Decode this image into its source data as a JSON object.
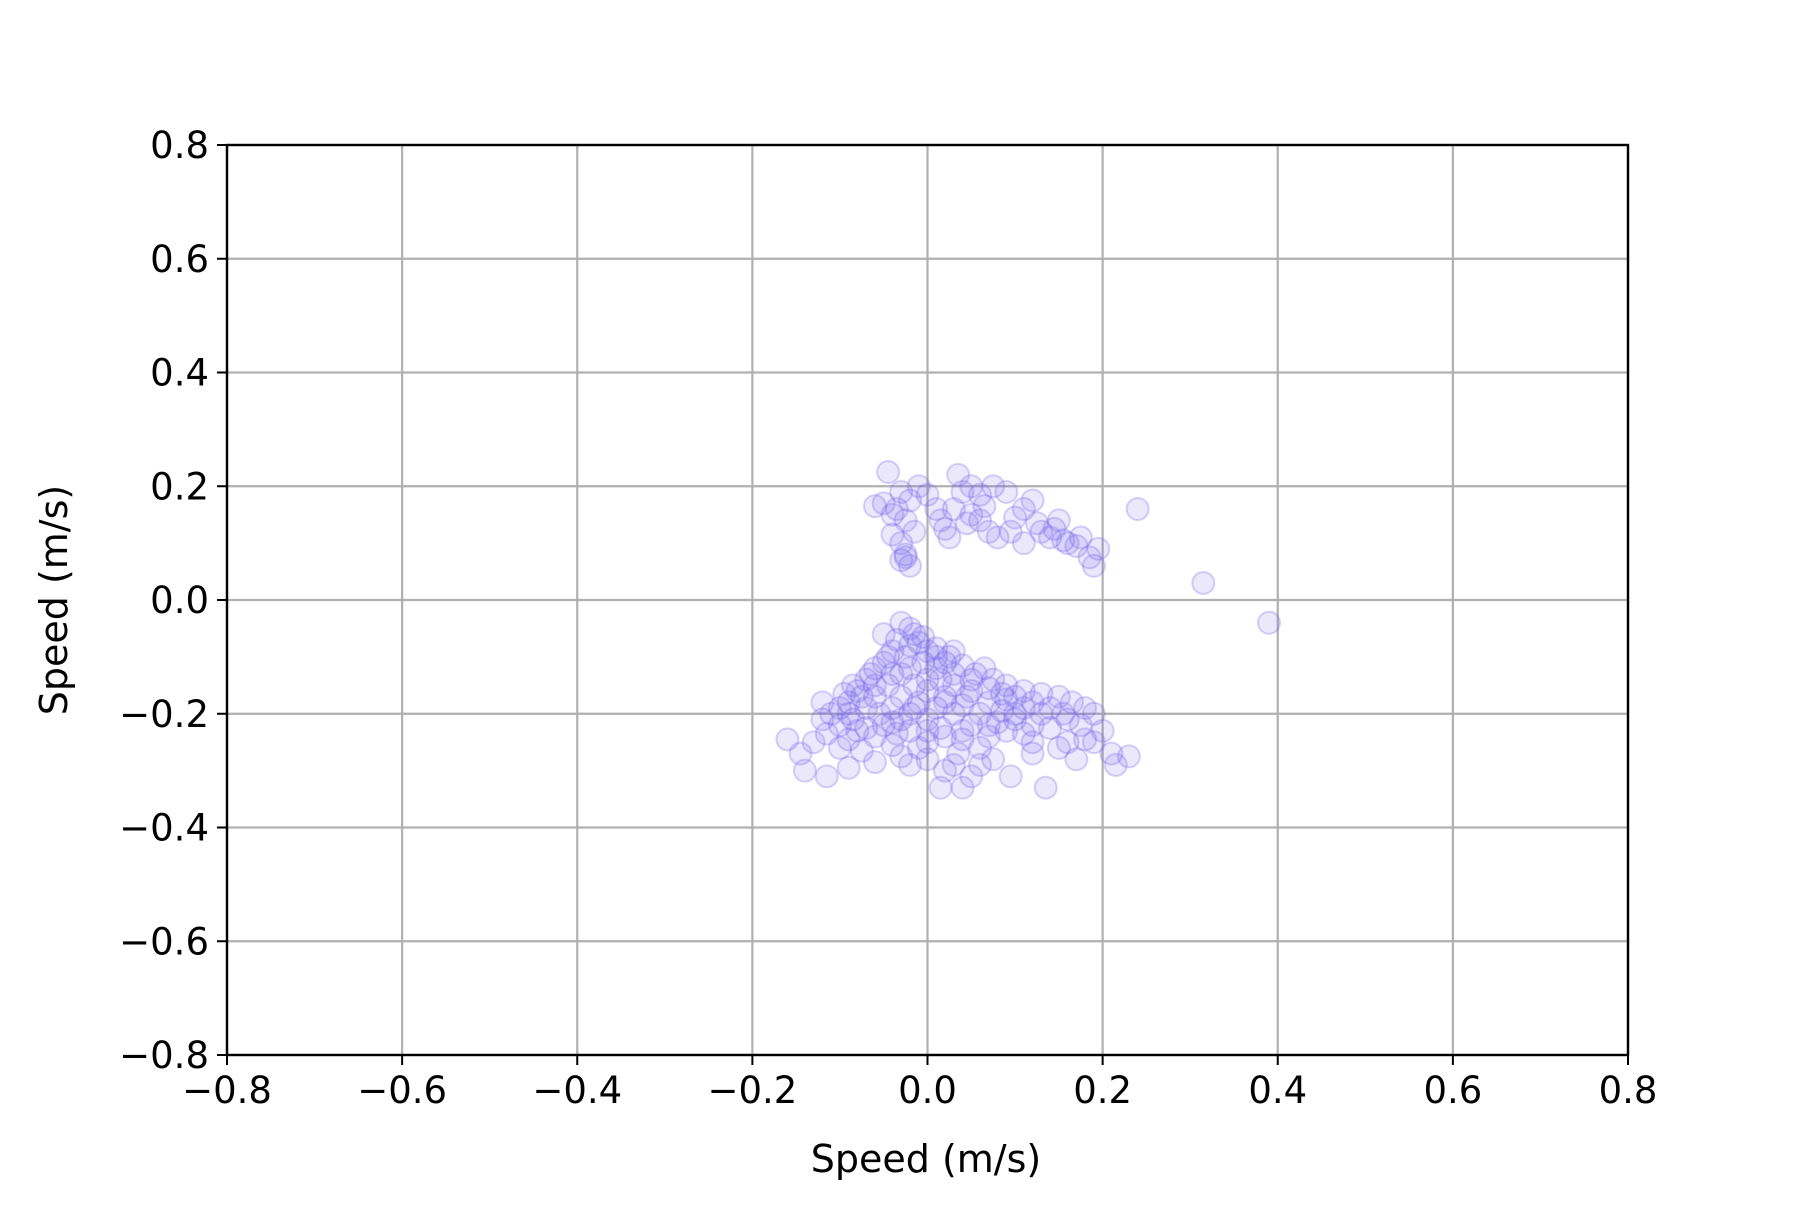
{
  "chart_data": {
    "type": "scatter",
    "title": "",
    "xlabel": "Speed (m/s)",
    "ylabel": "Speed (m/s)",
    "xlim": [
      -0.8,
      0.8
    ],
    "ylim": [
      -0.8,
      0.8
    ],
    "xticks": [
      -0.8,
      -0.6,
      -0.4,
      -0.2,
      0.0,
      0.2,
      0.4,
      0.6,
      0.8
    ],
    "yticks": [
      -0.8,
      -0.6,
      -0.4,
      -0.2,
      0.0,
      0.2,
      0.4,
      0.6,
      0.8
    ],
    "xtick_labels": [
      "−0.8",
      "−0.6",
      "−0.4",
      "−0.2",
      "0.0",
      "0.2",
      "0.4",
      "0.6",
      "0.8"
    ],
    "ytick_labels": [
      "−0.8",
      "−0.6",
      "−0.4",
      "−0.2",
      "0.0",
      "0.2",
      "0.4",
      "0.6",
      "0.8"
    ],
    "grid": true,
    "legend": "none",
    "colors": {
      "marker": "#7b68ee",
      "grid": "#b0b0b0",
      "axes": "#000000"
    },
    "marker_alpha": 0.15,
    "series": [
      {
        "points": [
          [
            -0.045,
            0.225
          ],
          [
            -0.03,
            0.19
          ],
          [
            -0.02,
            0.175
          ],
          [
            -0.05,
            0.17
          ],
          [
            -0.06,
            0.165
          ],
          [
            -0.035,
            0.16
          ],
          [
            -0.04,
            0.15
          ],
          [
            -0.025,
            0.14
          ],
          [
            -0.01,
            0.2
          ],
          [
            0.0,
            0.185
          ],
          [
            0.01,
            0.16
          ],
          [
            -0.015,
            0.12
          ],
          [
            -0.04,
            0.115
          ],
          [
            -0.03,
            0.1
          ],
          [
            -0.025,
            0.08
          ],
          [
            -0.03,
            0.07
          ],
          [
            -0.02,
            0.06
          ],
          [
            -0.025,
            0.075
          ],
          [
            0.035,
            0.22
          ],
          [
            0.05,
            0.2
          ],
          [
            0.04,
            0.19
          ],
          [
            0.06,
            0.185
          ],
          [
            0.075,
            0.2
          ],
          [
            0.09,
            0.19
          ],
          [
            0.065,
            0.165
          ],
          [
            0.05,
            0.15
          ],
          [
            0.03,
            0.16
          ],
          [
            0.015,
            0.14
          ],
          [
            0.02,
            0.125
          ],
          [
            0.025,
            0.11
          ],
          [
            0.06,
            0.14
          ],
          [
            0.07,
            0.12
          ],
          [
            0.08,
            0.11
          ],
          [
            0.095,
            0.12
          ],
          [
            0.1,
            0.145
          ],
          [
            0.11,
            0.16
          ],
          [
            0.12,
            0.175
          ],
          [
            0.125,
            0.135
          ],
          [
            0.13,
            0.12
          ],
          [
            0.14,
            0.11
          ],
          [
            0.145,
            0.125
          ],
          [
            0.15,
            0.14
          ],
          [
            0.155,
            0.105
          ],
          [
            0.16,
            0.1
          ],
          [
            0.17,
            0.095
          ],
          [
            0.175,
            0.11
          ],
          [
            0.185,
            0.075
          ],
          [
            0.195,
            0.09
          ],
          [
            0.19,
            0.06
          ],
          [
            0.24,
            0.16
          ],
          [
            0.11,
            0.1
          ],
          [
            0.045,
            0.135
          ],
          [
            0.315,
            0.03
          ],
          [
            0.39,
            -0.04
          ],
          [
            -0.03,
            -0.04
          ],
          [
            -0.02,
            -0.05
          ],
          [
            -0.015,
            -0.06
          ],
          [
            -0.035,
            -0.07
          ],
          [
            -0.01,
            -0.075
          ],
          [
            -0.04,
            -0.09
          ],
          [
            -0.025,
            -0.1
          ],
          [
            0.0,
            -0.09
          ],
          [
            -0.005,
            -0.11
          ],
          [
            -0.05,
            -0.11
          ],
          [
            -0.06,
            -0.12
          ],
          [
            -0.03,
            -0.13
          ],
          [
            0.01,
            -0.12
          ],
          [
            0.02,
            -0.11
          ],
          [
            -0.07,
            -0.14
          ],
          [
            -0.045,
            -0.15
          ],
          [
            -0.015,
            -0.15
          ],
          [
            0.015,
            -0.14
          ],
          [
            0.03,
            -0.13
          ],
          [
            -0.08,
            -0.16
          ],
          [
            -0.06,
            -0.17
          ],
          [
            -0.03,
            -0.17
          ],
          [
            0.0,
            -0.16
          ],
          [
            0.03,
            -0.15
          ],
          [
            0.05,
            -0.14
          ],
          [
            -0.09,
            -0.18
          ],
          [
            -0.07,
            -0.19
          ],
          [
            -0.04,
            -0.19
          ],
          [
            -0.01,
            -0.18
          ],
          [
            0.02,
            -0.17
          ],
          [
            0.05,
            -0.16
          ],
          [
            0.07,
            -0.155
          ],
          [
            -0.1,
            -0.19
          ],
          [
            -0.11,
            -0.2
          ],
          [
            -0.085,
            -0.21
          ],
          [
            -0.055,
            -0.2
          ],
          [
            -0.02,
            -0.2
          ],
          [
            0.01,
            -0.19
          ],
          [
            0.04,
            -0.185
          ],
          [
            0.07,
            -0.18
          ],
          [
            0.09,
            -0.175
          ],
          [
            -0.12,
            -0.21
          ],
          [
            -0.1,
            -0.22
          ],
          [
            -0.07,
            -0.225
          ],
          [
            -0.04,
            -0.215
          ],
          [
            0.0,
            -0.21
          ],
          [
            0.03,
            -0.2
          ],
          [
            0.06,
            -0.2
          ],
          [
            0.085,
            -0.195
          ],
          [
            0.11,
            -0.19
          ],
          [
            -0.115,
            -0.235
          ],
          [
            -0.09,
            -0.245
          ],
          [
            -0.06,
            -0.24
          ],
          [
            -0.02,
            -0.23
          ],
          [
            0.015,
            -0.225
          ],
          [
            0.05,
            -0.22
          ],
          [
            0.08,
            -0.215
          ],
          [
            0.1,
            -0.21
          ],
          [
            0.13,
            -0.2
          ],
          [
            -0.13,
            -0.25
          ],
          [
            -0.1,
            -0.26
          ],
          [
            -0.075,
            -0.265
          ],
          [
            -0.04,
            -0.255
          ],
          [
            0.0,
            -0.25
          ],
          [
            0.04,
            -0.245
          ],
          [
            0.07,
            -0.24
          ],
          [
            0.11,
            -0.235
          ],
          [
            0.14,
            -0.225
          ],
          [
            0.16,
            -0.21
          ],
          [
            -0.16,
            -0.245
          ],
          [
            -0.145,
            -0.27
          ],
          [
            -0.14,
            -0.3
          ],
          [
            -0.115,
            -0.31
          ],
          [
            -0.09,
            -0.295
          ],
          [
            -0.06,
            -0.285
          ],
          [
            -0.03,
            -0.275
          ],
          [
            0.0,
            -0.28
          ],
          [
            0.02,
            -0.3
          ],
          [
            0.035,
            -0.27
          ],
          [
            0.05,
            -0.31
          ],
          [
            0.04,
            -0.33
          ],
          [
            0.015,
            -0.33
          ],
          [
            0.06,
            -0.29
          ],
          [
            0.095,
            -0.31
          ],
          [
            0.135,
            -0.33
          ],
          [
            0.12,
            -0.27
          ],
          [
            0.15,
            -0.26
          ],
          [
            0.17,
            -0.28
          ],
          [
            0.19,
            -0.25
          ],
          [
            0.2,
            -0.23
          ],
          [
            0.21,
            -0.27
          ],
          [
            0.215,
            -0.29
          ],
          [
            0.23,
            -0.275
          ],
          [
            0.19,
            -0.2
          ],
          [
            0.18,
            -0.19
          ],
          [
            0.165,
            -0.18
          ],
          [
            0.15,
            -0.17
          ],
          [
            0.13,
            -0.165
          ],
          [
            0.11,
            -0.16
          ],
          [
            0.09,
            -0.15
          ],
          [
            0.075,
            -0.14
          ],
          [
            0.055,
            -0.13
          ],
          [
            0.04,
            -0.115
          ],
          [
            0.025,
            -0.1
          ],
          [
            0.01,
            -0.085
          ],
          [
            -0.005,
            -0.065
          ],
          [
            -0.02,
            -0.08
          ],
          [
            -0.045,
            -0.1
          ],
          [
            -0.065,
            -0.13
          ],
          [
            -0.085,
            -0.15
          ],
          [
            -0.095,
            -0.165
          ],
          [
            -0.12,
            -0.18
          ],
          [
            -0.05,
            -0.06
          ],
          [
            0.0,
            -0.14
          ],
          [
            0.02,
            -0.24
          ],
          [
            -0.01,
            -0.26
          ],
          [
            0.06,
            -0.26
          ],
          [
            0.09,
            -0.23
          ],
          [
            0.12,
            -0.22
          ],
          [
            -0.08,
            -0.23
          ],
          [
            -0.035,
            -0.235
          ],
          [
            0.0,
            -0.23
          ],
          [
            0.045,
            -0.17
          ],
          [
            0.085,
            -0.165
          ],
          [
            0.1,
            -0.17
          ],
          [
            0.12,
            -0.18
          ],
          [
            0.14,
            -0.19
          ],
          [
            0.155,
            -0.2
          ],
          [
            0.175,
            -0.22
          ],
          [
            -0.02,
            -0.12
          ],
          [
            -0.04,
            -0.13
          ],
          [
            0.01,
            -0.1
          ],
          [
            0.03,
            -0.09
          ],
          [
            -0.06,
            -0.15
          ],
          [
            -0.075,
            -0.17
          ],
          [
            0.065,
            -0.12
          ],
          [
            0.02,
            -0.18
          ],
          [
            -0.015,
            -0.19
          ],
          [
            -0.03,
            -0.21
          ],
          [
            0.04,
            -0.23
          ],
          [
            0.07,
            -0.22
          ],
          [
            0.1,
            -0.2
          ],
          [
            -0.05,
            -0.22
          ],
          [
            -0.09,
            -0.2
          ],
          [
            0.075,
            -0.28
          ],
          [
            0.03,
            -0.29
          ],
          [
            -0.02,
            -0.29
          ],
          [
            0.16,
            -0.25
          ],
          [
            0.18,
            -0.245
          ],
          [
            0.12,
            -0.25
          ]
        ]
      }
    ]
  }
}
